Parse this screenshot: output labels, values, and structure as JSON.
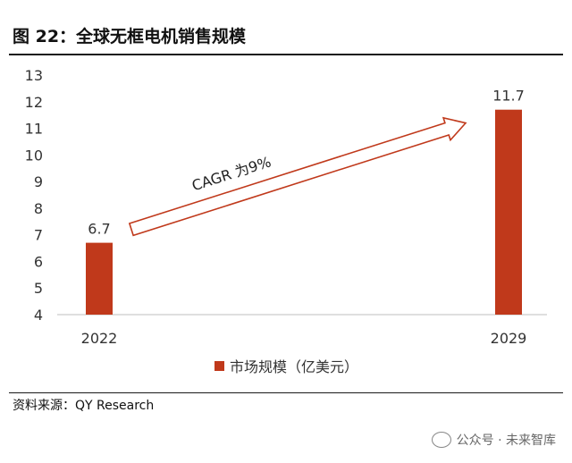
{
  "figure": {
    "title": "图 22：全球无框电机销售规模",
    "source": "资料来源：QY Research",
    "watermark": "公众号 · 未来智库"
  },
  "chart_data": {
    "type": "bar",
    "categories": [
      "2022",
      "2029"
    ],
    "series": [
      {
        "name": "市场规模（亿美元）",
        "values": [
          6.7,
          11.7
        ],
        "color": "#c0391b"
      }
    ],
    "data_labels": [
      "6.7",
      "11.7"
    ],
    "ylim": [
      4,
      13
    ],
    "yticks": [
      4,
      5,
      6,
      7,
      8,
      9,
      10,
      11,
      12,
      13
    ],
    "grid": false,
    "legend": "bottom",
    "annotation": {
      "text": "CAGR 为9%",
      "shape": "arrow",
      "from": {
        "x": "2022",
        "y": 7.2
      },
      "to": {
        "x": "2029",
        "y": 11.2
      }
    }
  }
}
